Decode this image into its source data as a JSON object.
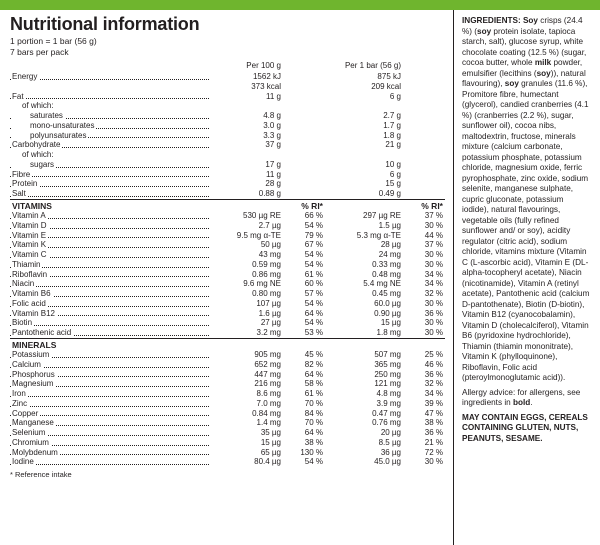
{
  "colors": {
    "accent": "#6fb52e",
    "text": "#231f20",
    "bg": "#ffffff"
  },
  "header": {
    "title": "Nutritional information",
    "portion_line": "1 portion = 1 bar (56 g)",
    "pack_line": "7 bars per pack"
  },
  "columns": {
    "per100": "Per 100 g",
    "perbar": "Per 1 bar (56 g)",
    "ri": "% RI*"
  },
  "macros": [
    {
      "label": "Energy",
      "indent": 0,
      "per100_a": "1562 kJ",
      "per100_b": "373 kcal",
      "perbar_a": "875 kJ",
      "perbar_b": "209 kcal"
    },
    {
      "label": "Fat",
      "indent": 0,
      "per100": "11 g",
      "perbar": "6 g"
    },
    {
      "label": "of which:",
      "indent": 1,
      "nodots": true
    },
    {
      "label": "saturates",
      "indent": 2,
      "per100": "4.8 g",
      "perbar": "2.7 g"
    },
    {
      "label": "mono-unsaturates",
      "indent": 2,
      "per100": "3.0 g",
      "perbar": "1.7 g"
    },
    {
      "label": "polyunsaturates",
      "indent": 2,
      "per100": "3.3 g",
      "perbar": "1.8 g"
    },
    {
      "label": "Carbohydrate",
      "indent": 0,
      "per100": "37 g",
      "perbar": "21 g"
    },
    {
      "label": "of which:",
      "indent": 1,
      "nodots": true
    },
    {
      "label": "sugars",
      "indent": 2,
      "per100": "17 g",
      "perbar": "10 g"
    },
    {
      "label": "Fibre",
      "indent": 0,
      "per100": "11 g",
      "perbar": "6 g"
    },
    {
      "label": "Protein",
      "indent": 0,
      "per100": "28 g",
      "perbar": "15 g"
    },
    {
      "label": "Salt",
      "indent": 0,
      "per100": "0.88 g",
      "perbar": "0.49 g"
    }
  ],
  "vitamins_title": "VITAMINS",
  "vitamins": [
    {
      "label": "Vitamin A",
      "per100": "530 µg RE",
      "ri1": "66 %",
      "perbar": "297 µg RE",
      "ri2": "37 %"
    },
    {
      "label": "Vitamin D",
      "per100": "2.7 µg",
      "ri1": "54 %",
      "perbar": "1.5 µg",
      "ri2": "30 %"
    },
    {
      "label": "Vitamin E",
      "per100": "9.5 mg α-TE",
      "ri1": "79 %",
      "perbar": "5.3 mg α-TE",
      "ri2": "44 %"
    },
    {
      "label": "Vitamin K",
      "per100": "50 µg",
      "ri1": "67 %",
      "perbar": "28 µg",
      "ri2": "37 %"
    },
    {
      "label": "Vitamin C",
      "per100": "43 mg",
      "ri1": "54 %",
      "perbar": "24 mg",
      "ri2": "30 %"
    },
    {
      "label": "Thiamin",
      "per100": "0.59 mg",
      "ri1": "54 %",
      "perbar": "0.33 mg",
      "ri2": "30 %"
    },
    {
      "label": "Riboflavin",
      "per100": "0.86 mg",
      "ri1": "61 %",
      "perbar": "0.48 mg",
      "ri2": "34 %"
    },
    {
      "label": "Niacin",
      "per100": "9.6 mg NE",
      "ri1": "60 %",
      "perbar": "5.4 mg NE",
      "ri2": "34 %"
    },
    {
      "label": "Vitamin B6",
      "per100": "0.80 mg",
      "ri1": "57 %",
      "perbar": "0.45 mg",
      "ri2": "32 %"
    },
    {
      "label": "Folic acid",
      "per100": "107 µg",
      "ri1": "54 %",
      "perbar": "60.0 µg",
      "ri2": "30 %"
    },
    {
      "label": "Vitamin B12",
      "per100": "1.6 µg",
      "ri1": "64 %",
      "perbar": "0.90 µg",
      "ri2": "36 %"
    },
    {
      "label": "Biotin",
      "per100": "27 µg",
      "ri1": "54 %",
      "perbar": "15 µg",
      "ri2": "30 %"
    },
    {
      "label": "Pantothenic acid",
      "per100": "3.2 mg",
      "ri1": "53 %",
      "perbar": "1.8 mg",
      "ri2": "30 %"
    }
  ],
  "minerals_title": "MINERALS",
  "minerals": [
    {
      "label": "Potassium",
      "per100": "905 mg",
      "ri1": "45 %",
      "perbar": "507 mg",
      "ri2": "25 %"
    },
    {
      "label": "Calcium",
      "per100": "652 mg",
      "ri1": "82 %",
      "perbar": "365 mg",
      "ri2": "46 %"
    },
    {
      "label": "Phosphorus",
      "per100": "447 mg",
      "ri1": "64 %",
      "perbar": "250 mg",
      "ri2": "36 %"
    },
    {
      "label": "Magnesium",
      "per100": "216 mg",
      "ri1": "58 %",
      "perbar": "121 mg",
      "ri2": "32 %"
    },
    {
      "label": "Iron",
      "per100": "8.6 mg",
      "ri1": "61 %",
      "perbar": "4.8 mg",
      "ri2": "34 %"
    },
    {
      "label": "Zinc",
      "per100": "7.0 mg",
      "ri1": "70 %",
      "perbar": "3.9 mg",
      "ri2": "39 %"
    },
    {
      "label": "Copper",
      "per100": "0.84 mg",
      "ri1": "84 %",
      "perbar": "0.47 mg",
      "ri2": "47 %"
    },
    {
      "label": "Manganese",
      "per100": "1.4 mg",
      "ri1": "70 %",
      "perbar": "0.76 mg",
      "ri2": "38 %"
    },
    {
      "label": "Selenium",
      "per100": "35 µg",
      "ri1": "64 %",
      "perbar": "20 µg",
      "ri2": "36 %"
    },
    {
      "label": "Chromium",
      "per100": "15 µg",
      "ri1": "38 %",
      "perbar": "8.5 µg",
      "ri2": "21 %"
    },
    {
      "label": "Molybdenum",
      "per100": "65 µg",
      "ri1": "130 %",
      "perbar": "36 µg",
      "ri2": "72 %"
    },
    {
      "label": "Iodine",
      "per100": "80.4 µg",
      "ri1": "54 %",
      "perbar": "45.0 µg",
      "ri2": "30 %"
    }
  ],
  "footnote": "* Reference intake",
  "ingredients": {
    "lead": "INGREDIENTS:",
    "body_html": "<b>Soy</b> crisps (24.4 %) (<b>soy</b> protein isolate, tapioca starch, salt), glucose syrup, white chocolate coating (12.5 %) (sugar, cocoa butter, whole <b>milk</b> powder, emulsifier (lecithins (<b>soy</b>)), natural flavouring), <b>soy</b> granules (11.6 %), Promitore fibre, humectant (glycerol), candied cranberries (4.1 %) (cranberries (2.2 %), sugar, sunflower oil), cocoa nibs, maltodextrin, fructose, minerals mixture (calcium carbonate, potassium phosphate, potassium chloride, magnesium oxide, ferric pyrophosphate, zinc oxide, sodium selenite, manganese sulphate, cupric gluconate, potassium iodide), natural flavourings, vegetable oils (fully refined sunflower and/ or soy), acidity regulator (citric acid), sodium chloride, vitamins mixture (Vitamin C (L-ascorbic acid), Vitamin E (DL-alpha-tocopheryl acetate), Niacin (nicotinamide), Vitamin A (retinyl acetate), Pantothenic acid (calcium D-pantothenate), Biotin (D-biotin), Vitamin B12 (cyanocobalamin), Vitamin D (cholecalciferol), Vitamin B6 (pyridoxine hydrochloride), Thiamin (thiamin mononitrate), Vitamin K (phylloquinone), Riboflavin, Folic acid (pteroylmonoglutamic acid)).",
    "allergy": "Allergy advice: for allergens, see ingredients in <b>bold</b>.",
    "contain": "MAY CONTAIN EGGS, CEREALS CONTAINING GLUTEN, NUTS, PEANUTS, SESAME."
  }
}
